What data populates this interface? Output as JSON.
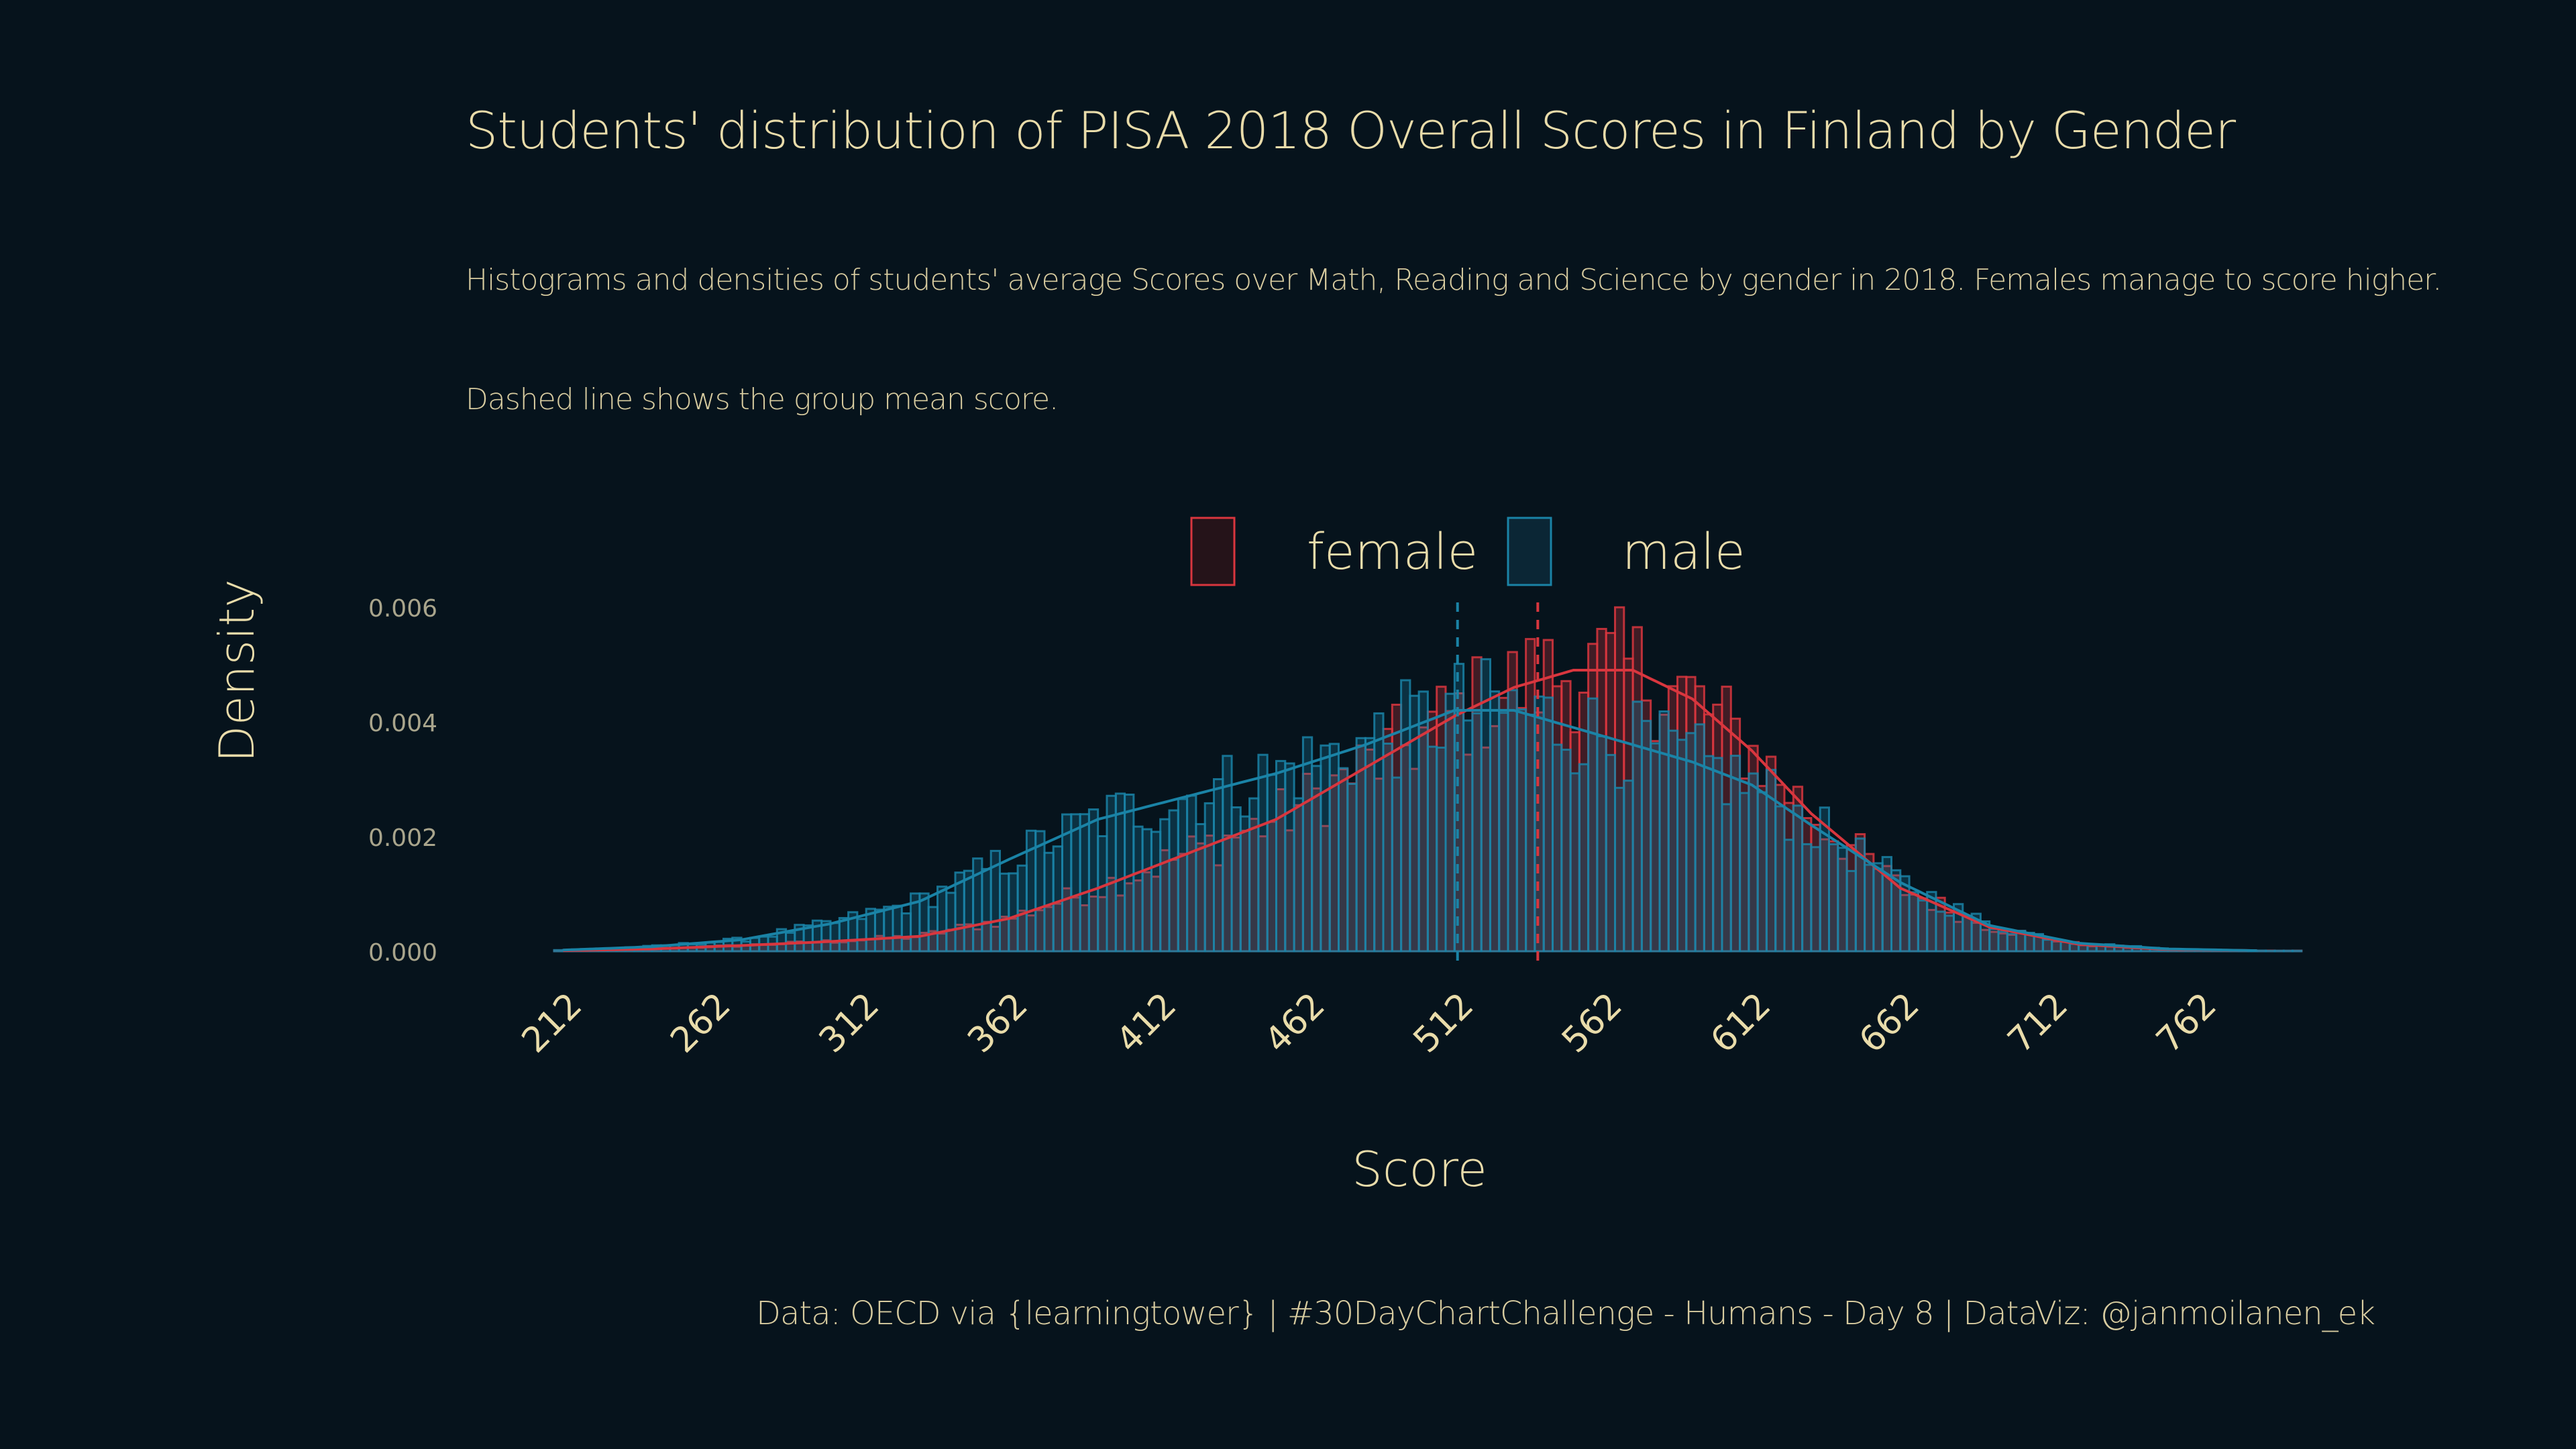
{
  "title": "Students' distribution of PISA 2018 Overall Scores in Finland by Gender",
  "subtitle": "Histograms and densities of students' average Scores over Math, Reading and Science by gender in 2018. Females manage to score higher.",
  "subtitle2": "Dashed line shows the group mean score.",
  "caption": "Data: OECD via {learningtower}  |  #30DayChartChallenge - Humans - Day 8  |  DataViz: @janmoilanen_ek",
  "colors": {
    "background": "#06131c",
    "female": "#d9363e",
    "male": "#1a83a6",
    "text": "#e9dcaa"
  },
  "chart_data": {
    "type": "area",
    "xlabel": "Score",
    "ylabel": "Density",
    "xlim": [
      207,
      795
    ],
    "ylim": [
      0,
      0.006
    ],
    "x_ticks": [
      212,
      262,
      312,
      362,
      412,
      462,
      512,
      562,
      612,
      662,
      712,
      762
    ],
    "y_ticks": [
      "0.000",
      "0.002",
      "0.004",
      "0.006"
    ],
    "legend": [
      "female",
      "male"
    ],
    "legend_position": "top",
    "series": [
      {
        "name": "female",
        "mean": 538,
        "density_x": [
          210,
          240,
          270,
          300,
          330,
          360,
          390,
          420,
          450,
          480,
          510,
          530,
          550,
          570,
          590,
          610,
          630,
          660,
          690,
          720,
          750,
          780
        ],
        "density_y": [
          1e-05,
          4e-05,
          0.0001,
          0.00017,
          0.00026,
          0.00057,
          0.0011,
          0.0017,
          0.0023,
          0.0032,
          0.0041,
          0.0046,
          0.0049,
          0.0049,
          0.0044,
          0.0035,
          0.0024,
          0.0011,
          0.00042,
          0.00012,
          3e-05,
          1e-05
        ]
      },
      {
        "name": "male",
        "mean": 511,
        "density_x": [
          210,
          240,
          270,
          300,
          330,
          360,
          390,
          420,
          450,
          480,
          510,
          530,
          550,
          570,
          590,
          610,
          630,
          660,
          690,
          720,
          750,
          780
        ],
        "density_y": [
          2e-05,
          8e-05,
          0.0002,
          0.00048,
          0.00087,
          0.0016,
          0.0023,
          0.0027,
          0.0031,
          0.0036,
          0.0042,
          0.0042,
          0.0039,
          0.0036,
          0.0033,
          0.0029,
          0.0022,
          0.0012,
          0.00045,
          0.00014,
          4e-05,
          1e-05
        ]
      }
    ]
  }
}
